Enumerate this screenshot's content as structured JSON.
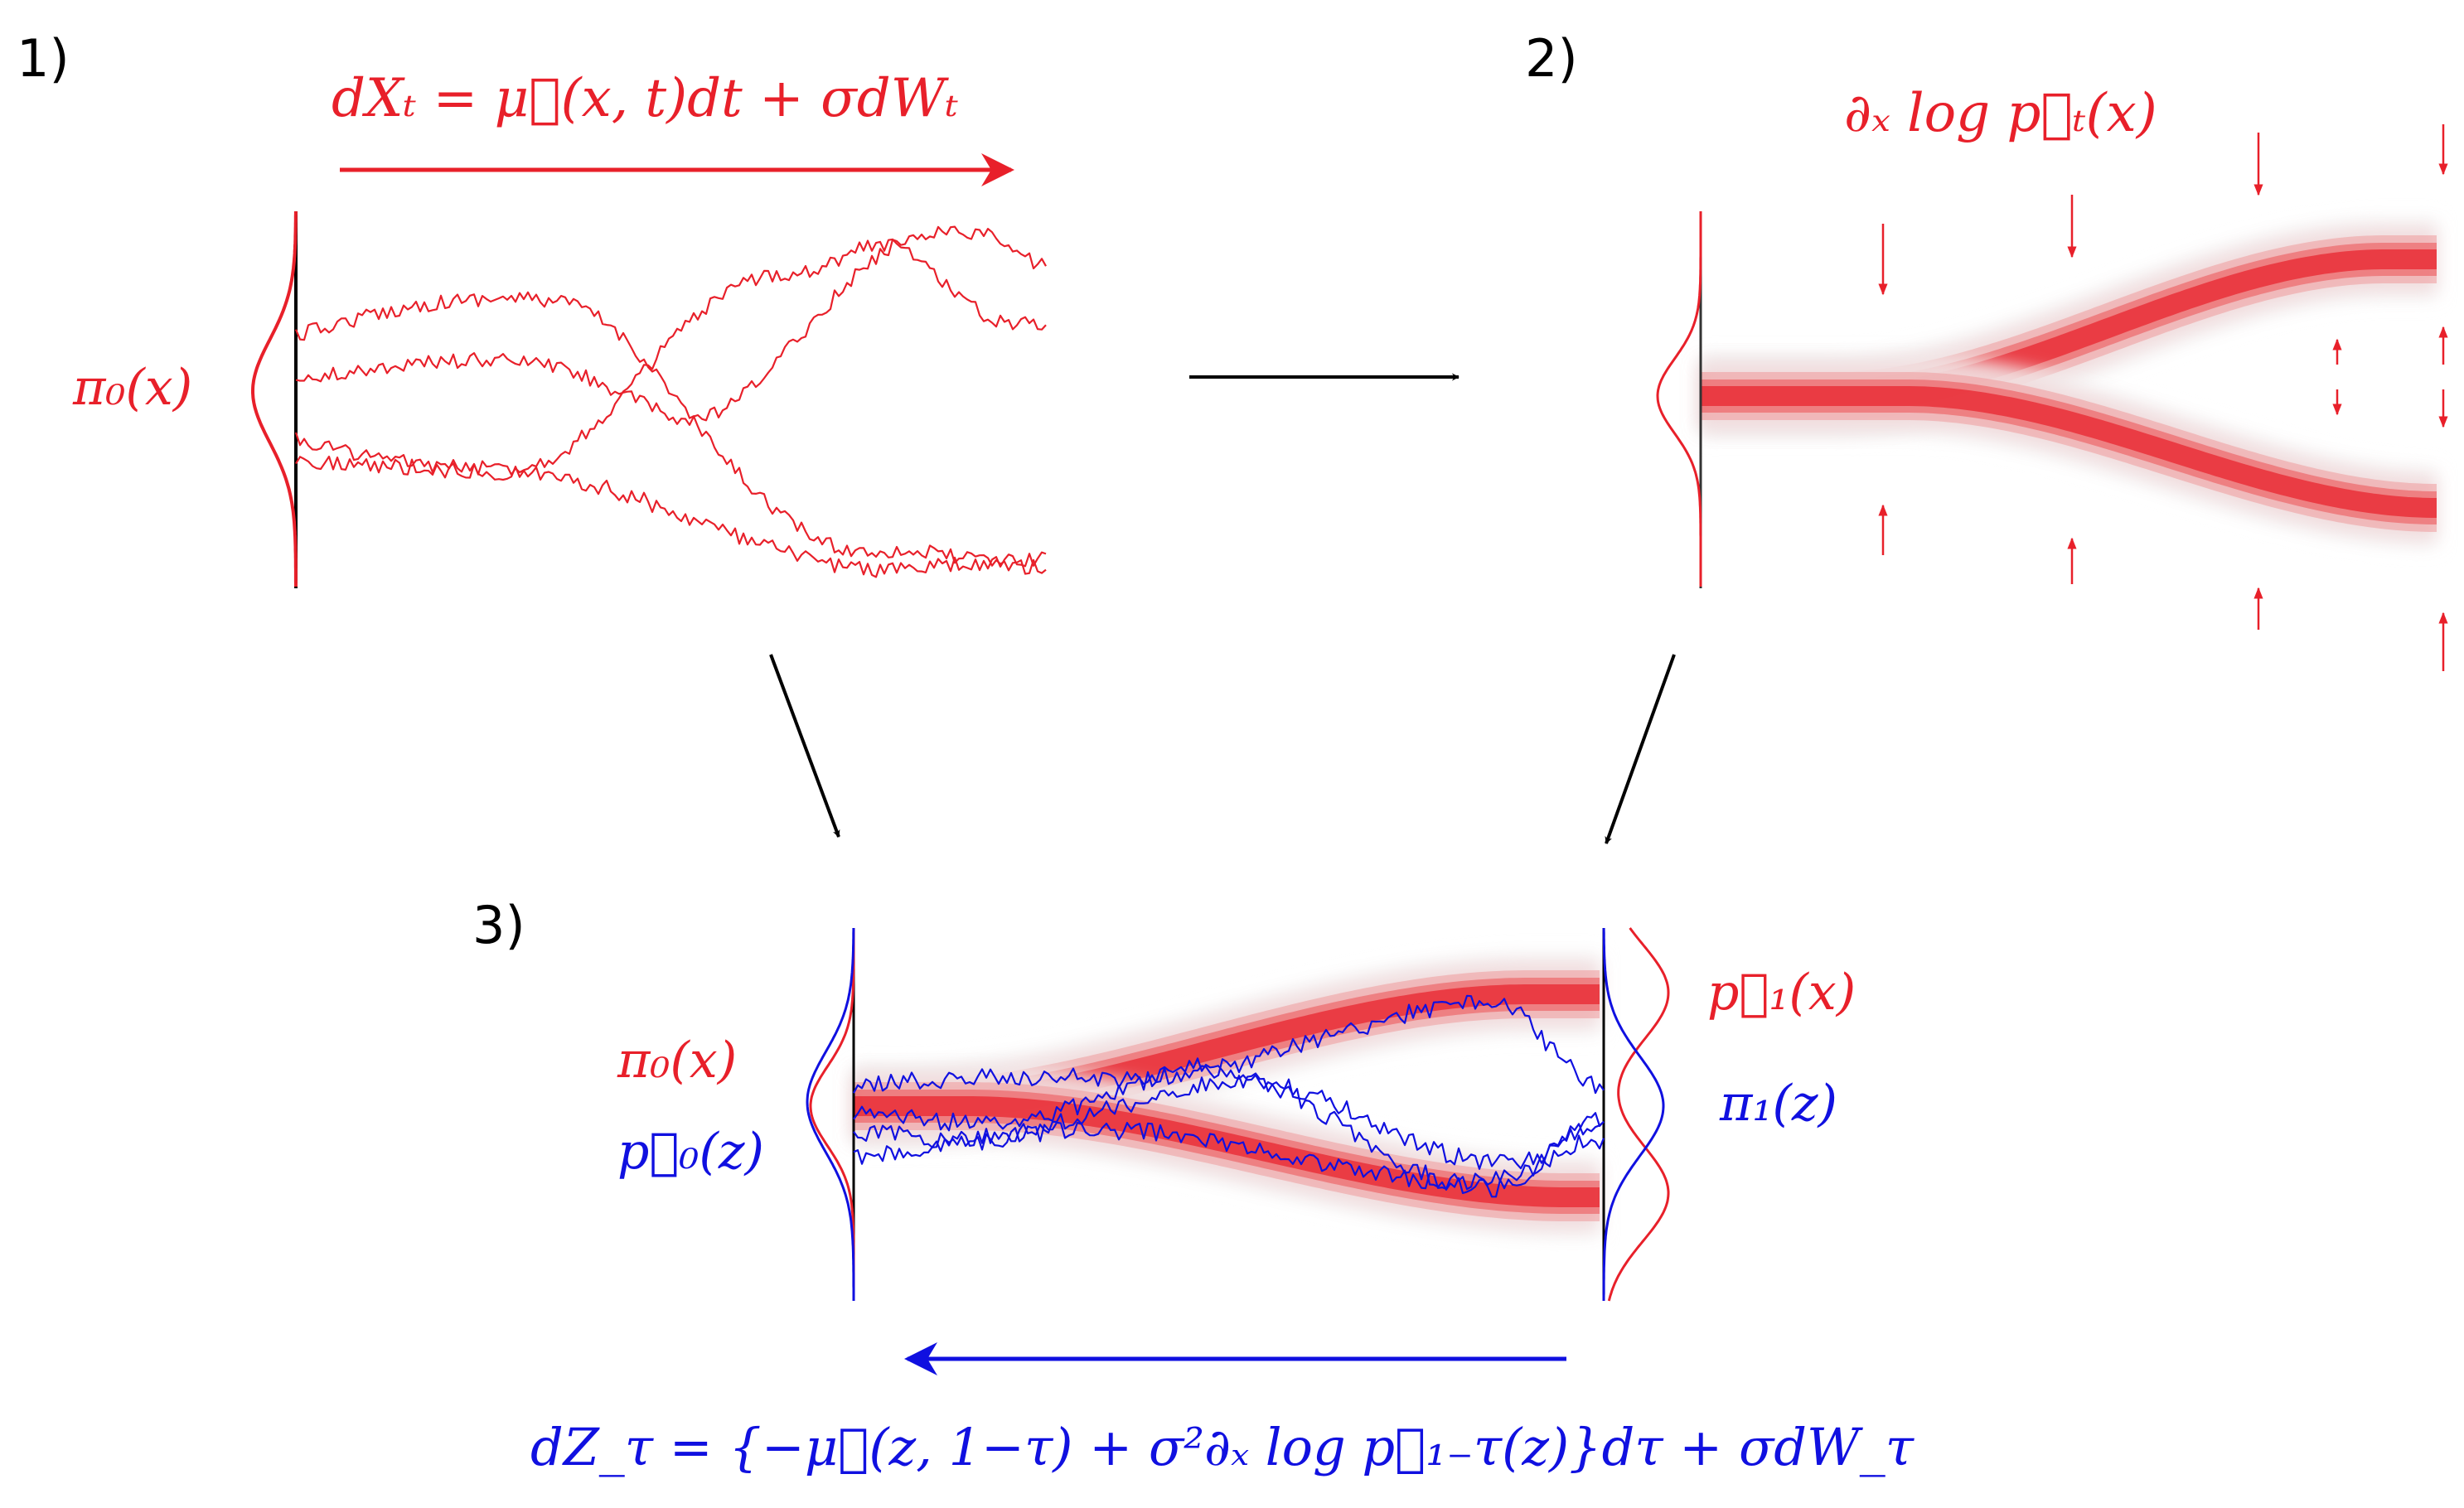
{
  "panels": {
    "p1": {
      "number": "1)",
      "equation": "dXₜ = μ⃗(x, t)dt + σdWₜ",
      "prior_label": "π₀(x)"
    },
    "p2": {
      "number": "2)",
      "score_label": "∂ₓ log p⃗ₜ(x)"
    },
    "p3": {
      "number": "3)",
      "left_red_label": "π₀(x)",
      "left_blue_label": "p⃖₀(z)",
      "right_red_label": "p⃗₁(x)",
      "right_blue_label": "π₁(z)",
      "equation": "dZ_τ = {−μ⃗(z, 1−τ) + σ²∂ₓ log p⃗₁₋τ(z)}dτ + σdW_τ"
    }
  },
  "colors": {
    "forward": "#e8202a",
    "reverse": "#1010e0",
    "arrow": "#000000",
    "band": "#e8202a"
  }
}
